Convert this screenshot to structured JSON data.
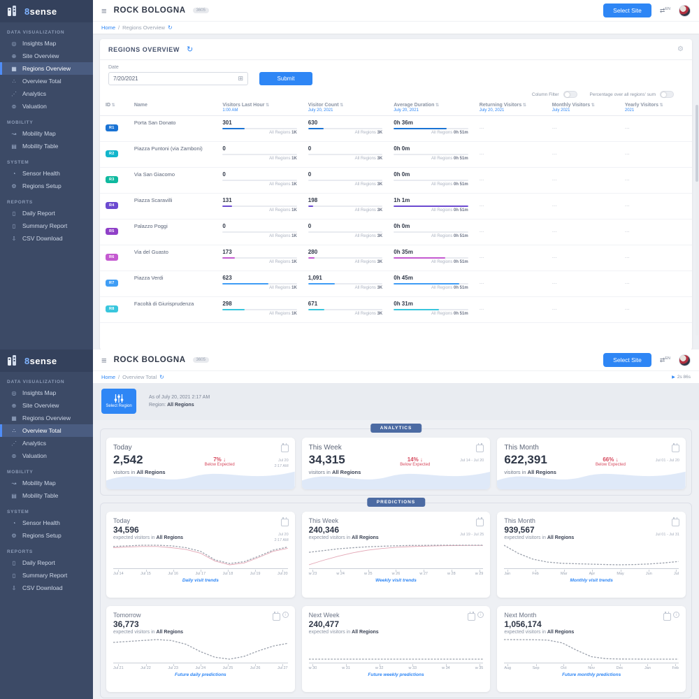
{
  "brand": {
    "logo_text": "sense",
    "logo_accent": "8"
  },
  "header": {
    "title": "ROCK BOLOGNA",
    "badge": "3605",
    "select_site_label": "Select Site",
    "lang": "EN"
  },
  "sidebar": {
    "sections": [
      {
        "title": "DATA VISUALIZATION",
        "items": [
          {
            "label": "Insights Map",
            "icon": "insights-map"
          },
          {
            "label": "Site Overview",
            "icon": "site-overview"
          },
          {
            "label": "Regions Overview",
            "icon": "regions-overview"
          },
          {
            "label": "Overview Total",
            "icon": "overview-total"
          },
          {
            "label": "Analytics",
            "icon": "analytics"
          },
          {
            "label": "Valuation",
            "icon": "valuation"
          }
        ]
      },
      {
        "title": "MOBILITY",
        "items": [
          {
            "label": "Mobility Map",
            "icon": "mobility-map"
          },
          {
            "label": "Mobility Table",
            "icon": "mobility-table"
          }
        ]
      },
      {
        "title": "SYSTEM",
        "items": [
          {
            "label": "Sensor Health",
            "icon": "sensor-health"
          },
          {
            "label": "Regions Setup",
            "icon": "regions-setup"
          }
        ]
      },
      {
        "title": "REPORTS",
        "items": [
          {
            "label": "Daily Report",
            "icon": "daily-report"
          },
          {
            "label": "Summary Report",
            "icon": "summary-report"
          },
          {
            "label": "CSV Download",
            "icon": "csv-download"
          }
        ]
      }
    ]
  },
  "screen1": {
    "active_nav": "Regions Overview",
    "breadcrumb_home": "Home",
    "breadcrumb_page": "Regions Overview",
    "panel_title": "REGIONS OVERVIEW",
    "date_label": "Date",
    "date_value": "7/20/2021",
    "submit_label": "Submit",
    "toggle1_label": "Column Filter",
    "toggle2_label": "Percentage over all regions' sum",
    "table": {
      "columns": [
        {
          "label": "ID",
          "sub": "",
          "sortable": true
        },
        {
          "label": "Name",
          "sub": "",
          "sortable": false
        },
        {
          "label": "Visitors Last Hour",
          "sub": "1:00 AM",
          "sortable": true
        },
        {
          "label": "Visitor Count",
          "sub": "July 20, 2021",
          "sortable": true
        },
        {
          "label": "Average Duration",
          "sub": "July 20, 2021",
          "sortable": true
        },
        {
          "label": "Returning Visitors",
          "sub": "July 20, 2021",
          "sortable": true
        },
        {
          "label": "Monthly Visitors",
          "sub": "July 2021",
          "sortable": true
        },
        {
          "label": "Yearly Visitors",
          "sub": "2021",
          "sortable": true
        }
      ],
      "all_regions_label": "All Regions",
      "totals": {
        "last_hour": "1K",
        "count": "3K",
        "duration": "0h 51m"
      },
      "rows": [
        {
          "id": "R1",
          "color": "#1a73d4",
          "name": "Porta San Donato",
          "last_hour": "301",
          "lh_pct": 30,
          "count": "630",
          "cnt_pct": 21,
          "duration": "0h 36m",
          "dur_pct": 71,
          "returning": "...",
          "monthly": "...",
          "yearly": "..."
        },
        {
          "id": "R2",
          "color": "#12b5cb",
          "name": "Piazza Puntoni (via Zamboni)",
          "last_hour": "0",
          "lh_pct": 0,
          "count": "0",
          "cnt_pct": 0,
          "duration": "0h 0m",
          "dur_pct": 0,
          "returning": "...",
          "monthly": "...",
          "yearly": "..."
        },
        {
          "id": "R3",
          "color": "#0fb99f",
          "name": "Via San Giacomo",
          "last_hour": "0",
          "lh_pct": 0,
          "count": "0",
          "cnt_pct": 0,
          "duration": "0h 0m",
          "dur_pct": 0,
          "returning": "...",
          "monthly": "...",
          "yearly": "..."
        },
        {
          "id": "R4",
          "color": "#6c4ad0",
          "name": "Piazza Scaravilli",
          "last_hour": "131",
          "lh_pct": 13,
          "count": "198",
          "cnt_pct": 7,
          "duration": "1h 1m",
          "dur_pct": 100,
          "returning": "...",
          "monthly": "...",
          "yearly": "..."
        },
        {
          "id": "R5",
          "color": "#9040c8",
          "name": "Palazzo Poggi",
          "last_hour": "0",
          "lh_pct": 0,
          "count": "0",
          "cnt_pct": 0,
          "duration": "0h 0m",
          "dur_pct": 0,
          "returning": "...",
          "monthly": "...",
          "yearly": "..."
        },
        {
          "id": "R6",
          "color": "#c45ad0",
          "name": "Via del Guasto",
          "last_hour": "173",
          "lh_pct": 17,
          "count": "280",
          "cnt_pct": 9,
          "duration": "0h 35m",
          "dur_pct": 69,
          "returning": "...",
          "monthly": "...",
          "yearly": "..."
        },
        {
          "id": "R7",
          "color": "#3f9df5",
          "name": "Piazza Verdi",
          "last_hour": "623",
          "lh_pct": 62,
          "count": "1,091",
          "cnt_pct": 36,
          "duration": "0h 45m",
          "dur_pct": 88,
          "returning": "...",
          "monthly": "...",
          "yearly": "..."
        },
        {
          "id": "R8",
          "color": "#39c6dd",
          "name": "Facoltà di Giurisprudenza",
          "last_hour": "298",
          "lh_pct": 30,
          "count": "671",
          "cnt_pct": 22,
          "duration": "0h 31m",
          "dur_pct": 61,
          "returning": "...",
          "monthly": "...",
          "yearly": "..."
        }
      ]
    }
  },
  "screen2": {
    "active_nav": "Overview Total",
    "breadcrumb_home": "Home",
    "breadcrumb_page": "Overview Total",
    "timer": "2s 86s",
    "select_region_label": "Select Region",
    "as_of": "As of July 20, 2021 2:17 AM",
    "region_label": "Region:",
    "region_value": "All Regions",
    "analytics_badge": "ANALYTICS",
    "predictions_badge": "PREDICTIONS",
    "analytics_cards": [
      {
        "title": "Today",
        "value": "2,542",
        "sub_prefix": "visitors in",
        "sub_bold": "All Regions",
        "delta_pct": "7%",
        "delta_note": "Below Expected",
        "date_line1": "Jul 20",
        "date_line2": "2:17 AM"
      },
      {
        "title": "This Week",
        "value": "34,315",
        "sub_prefix": "visitors in",
        "sub_bold": "All Regions",
        "delta_pct": "14%",
        "delta_note": "Below Expected",
        "date_line1": "Jul 14 - Jul 20",
        "date_line2": ""
      },
      {
        "title": "This Month",
        "value": "622,391",
        "sub_prefix": "visitors in",
        "sub_bold": "All Regions",
        "delta_pct": "66%",
        "delta_note": "Below Expected",
        "date_line1": "Jul 01 - Jul 20",
        "date_line2": ""
      }
    ],
    "prediction_cards": [
      {
        "title": "Today",
        "value": "34,596",
        "sub_prefix": "expected visitors in",
        "sub_bold": "All Regions",
        "caption": "Daily visit trends",
        "icons": [
          "calendar"
        ],
        "date_line1": "Jul 20",
        "date_line2": "2:17 AM",
        "x_labels": [
          "Jul 14",
          "Jul 15",
          "Jul 16",
          "Jul 17",
          "Jul 18",
          "Jul 19",
          "Jul 20"
        ],
        "main": [
          34.4,
          34.5,
          34.6,
          34.6,
          34.5,
          34.2,
          33.6,
          32.2,
          31.6,
          31.9,
          32.8,
          33.8,
          34.3
        ],
        "secondary": [
          34.2,
          34.3,
          34.4,
          34.4,
          34.2,
          33.9,
          33.3,
          32.0,
          31.4,
          31.7,
          32.6,
          33.6,
          34.1
        ]
      },
      {
        "title": "This Week",
        "value": "240,346",
        "sub_prefix": "expected visitors in",
        "sub_bold": "All Regions",
        "caption": "Weekly visit trends",
        "icons": [
          "calendar"
        ],
        "date_line1": "Jul 19 - Jul 25",
        "date_line2": "",
        "x_labels": [
          "w 23",
          "w 24",
          "w 25",
          "w 26",
          "w 27",
          "w 28",
          "w 29"
        ],
        "main": [
          236,
          237.5,
          239,
          240,
          240.8,
          241.3,
          241.7,
          242,
          242.1,
          242.2,
          242.2,
          242.2,
          242.2
        ],
        "secondary": [
          225,
          229,
          232.5,
          235.5,
          237.8,
          239.3,
          240.4,
          241,
          241.4,
          241.7,
          241.9,
          242,
          242
        ]
      },
      {
        "title": "This Month",
        "value": "939,567",
        "sub_prefix": "expected visitors in",
        "sub_bold": "All Regions",
        "caption": "Monthly visit trends",
        "icons": [
          "calendar"
        ],
        "date_line1": "Jul 01 - Jul 31",
        "date_line2": "",
        "x_labels": [
          "Jan",
          "Feb",
          "Mar",
          "Apr",
          "May",
          "Jun",
          "Jul"
        ],
        "main": [
          1160,
          1060,
          990,
          955,
          940,
          935,
          930,
          925,
          922,
          925,
          932,
          945,
          962
        ],
        "secondary": null
      },
      {
        "title": "Tomorrow",
        "value": "36,773",
        "sub_prefix": "expected visitors in",
        "sub_bold": "All Regions",
        "caption": "Future daily predictions",
        "icons": [
          "calendar",
          "info"
        ],
        "date_line1": "",
        "date_line2": "",
        "x_labels": [
          "Jul 21",
          "Jul 22",
          "Jul 23",
          "Jul 24",
          "Jul 25",
          "Jul 26",
          "Jul 27"
        ],
        "main": [
          36.8,
          36.9,
          37.0,
          37.1,
          37.0,
          36.6,
          35.8,
          35.2,
          35.0,
          35.3,
          35.9,
          36.4,
          36.7
        ],
        "secondary": null
      },
      {
        "title": "Next Week",
        "value": "240,477",
        "sub_prefix": "expected visitors in",
        "sub_bold": "All Regions",
        "caption": "Future weekly predictions",
        "icons": [
          "calendar",
          "info"
        ],
        "date_line1": "",
        "date_line2": "",
        "x_labels": [
          "w 30",
          "w 31",
          "w 32",
          "w 33",
          "w 34",
          "w 35"
        ],
        "main": [
          240.5,
          240.5,
          240.5,
          240.5,
          240.5,
          240.5
        ],
        "secondary": null
      },
      {
        "title": "Next Month",
        "value": "1,056,174",
        "sub_prefix": "expected visitors in",
        "sub_bold": "All Regions",
        "caption": "Future monthly predictions",
        "icons": [
          "calendar",
          "info"
        ],
        "date_line1": "",
        "date_line2": "",
        "x_labels": [
          "Aug",
          "Sep",
          "Oct",
          "Nov",
          "Dec",
          "Jan",
          "Feb"
        ],
        "main": [
          1056,
          1054,
          1048,
          1030,
          880,
          480,
          140,
          30,
          12,
          8,
          6,
          5,
          5
        ],
        "secondary": null
      }
    ]
  },
  "colors": {
    "accent": "#2e86f5",
    "badge_band": "#4c6ba3",
    "delta_red": "#d64a5e",
    "bar_track": "#e9ebf0"
  }
}
